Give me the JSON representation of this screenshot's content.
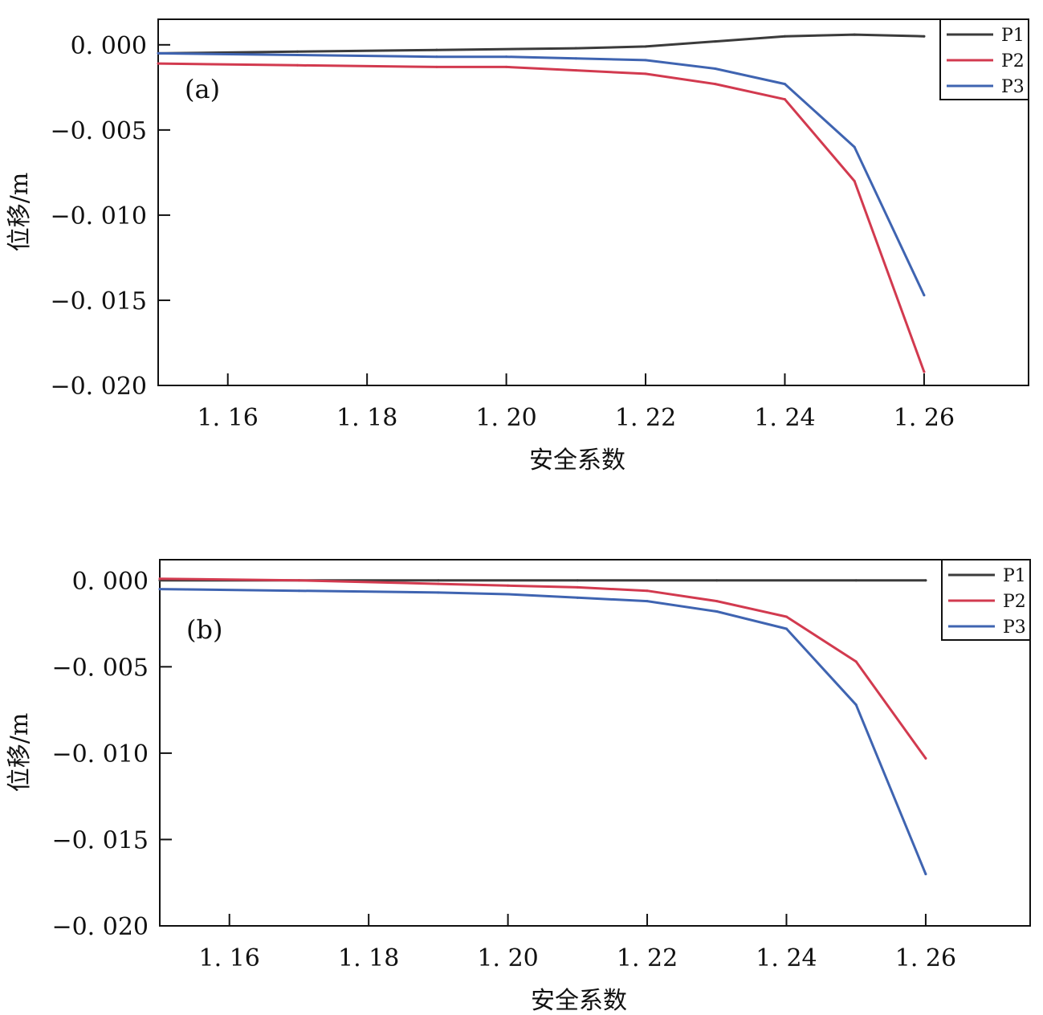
{
  "chart_data": [
    {
      "type": "line",
      "panel_label": "(a)",
      "xlabel": "安全系数",
      "ylabel": "位移/m",
      "xlim": [
        1.15,
        1.275
      ],
      "ylim": [
        -0.02,
        0.0015
      ],
      "xticks": [
        1.16,
        1.18,
        1.2,
        1.22,
        1.24,
        1.26
      ],
      "xtick_labels": [
        "1. 16",
        "1. 18",
        "1. 20",
        "1. 22",
        "1. 24",
        "1. 26"
      ],
      "yticks": [
        0.0,
        -0.005,
        -0.01,
        -0.015,
        -0.02
      ],
      "ytick_labels": [
        "0. 000",
        "−0. 005",
        "−0. 010",
        "−0. 015",
        "−0. 020"
      ],
      "legend_position": "top-right",
      "grid": false,
      "series": [
        {
          "name": "P1",
          "color": "#3b3b3b",
          "x": [
            1.15,
            1.17,
            1.19,
            1.21,
            1.22,
            1.23,
            1.24,
            1.25,
            1.26
          ],
          "y": [
            -0.0005,
            -0.0004,
            -0.0003,
            -0.0002,
            -0.0001,
            0.0002,
            0.0005,
            0.0006,
            0.0005
          ]
        },
        {
          "name": "P2",
          "color": "#d23a4f",
          "x": [
            1.15,
            1.17,
            1.19,
            1.2,
            1.21,
            1.22,
            1.23,
            1.24,
            1.25,
            1.26
          ],
          "y": [
            -0.0011,
            -0.0012,
            -0.0013,
            -0.0013,
            -0.0015,
            -0.0017,
            -0.0023,
            -0.0032,
            -0.008,
            -0.0192
          ]
        },
        {
          "name": "P3",
          "color": "#3f64b1",
          "x": [
            1.15,
            1.17,
            1.19,
            1.2,
            1.21,
            1.22,
            1.23,
            1.24,
            1.25,
            1.26
          ],
          "y": [
            -0.0005,
            -0.0006,
            -0.0007,
            -0.0007,
            -0.0008,
            -0.0009,
            -0.0014,
            -0.0023,
            -0.006,
            -0.0147
          ]
        }
      ]
    },
    {
      "type": "line",
      "panel_label": "(b)",
      "xlabel": "安全系数",
      "ylabel": "位移/m",
      "xlim": [
        1.15,
        1.275
      ],
      "ylim": [
        -0.02,
        0.0012
      ],
      "xticks": [
        1.16,
        1.18,
        1.2,
        1.22,
        1.24,
        1.26
      ],
      "xtick_labels": [
        "1. 16",
        "1. 18",
        "1. 20",
        "1. 22",
        "1. 24",
        "1. 26"
      ],
      "yticks": [
        0.0,
        -0.005,
        -0.01,
        -0.015,
        -0.02
      ],
      "ytick_labels": [
        "0. 000",
        "−0. 005",
        "−0. 010",
        "−0. 015",
        "−0. 020"
      ],
      "legend_position": "top-right",
      "grid": false,
      "series": [
        {
          "name": "P1",
          "color": "#3b3b3b",
          "x": [
            1.15,
            1.17,
            1.19,
            1.21,
            1.23,
            1.25,
            1.26
          ],
          "y": [
            0.0,
            0.0,
            0.0,
            0.0,
            0.0,
            0.0,
            0.0
          ]
        },
        {
          "name": "P2",
          "color": "#d23a4f",
          "x": [
            1.15,
            1.17,
            1.19,
            1.2,
            1.21,
            1.22,
            1.23,
            1.24,
            1.25,
            1.26
          ],
          "y": [
            0.0001,
            0.0,
            -0.0002,
            -0.0003,
            -0.0004,
            -0.0006,
            -0.0012,
            -0.0021,
            -0.0047,
            -0.0103
          ]
        },
        {
          "name": "P3",
          "color": "#3f64b1",
          "x": [
            1.15,
            1.17,
            1.19,
            1.2,
            1.21,
            1.22,
            1.23,
            1.24,
            1.25,
            1.26
          ],
          "y": [
            -0.0005,
            -0.0006,
            -0.0007,
            -0.0008,
            -0.001,
            -0.0012,
            -0.0018,
            -0.0028,
            -0.0072,
            -0.017
          ]
        }
      ]
    }
  ]
}
